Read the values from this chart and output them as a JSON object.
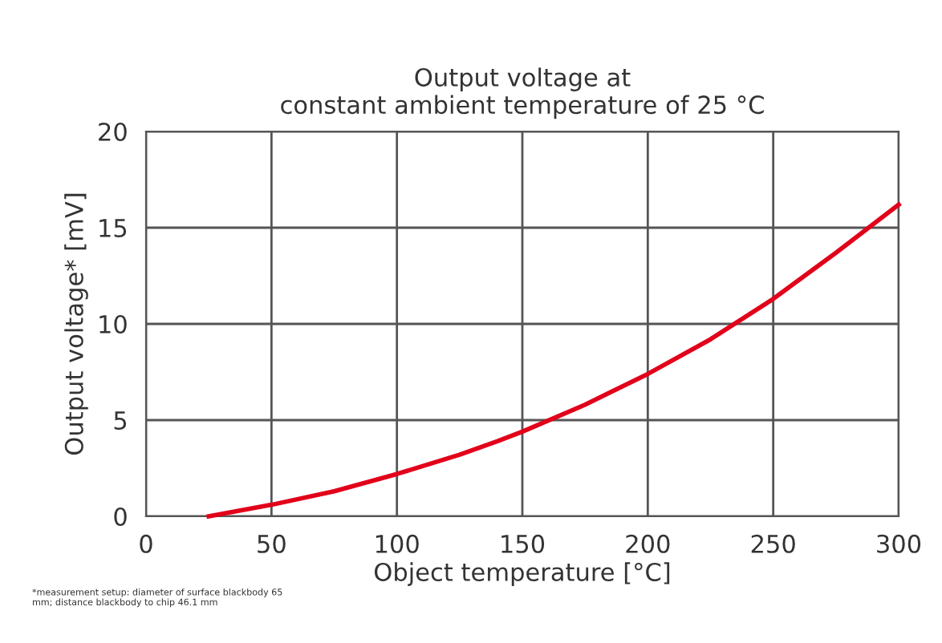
{
  "chart_data": {
    "type": "line",
    "title": "Output voltage at\nconstant ambient temperature of 25 °C",
    "xlabel": "Object temperature [°C]",
    "ylabel": "Output voltage* [mV]",
    "annotations": [
      "*measurement setup: diameter of surface blackbody 65\nmm; distance blackbody to chip 46.1 mm"
    ],
    "series": [
      {
        "color": "#e2001a",
        "x": [
          25,
          50,
          75,
          100,
          125,
          140,
          150,
          175,
          200,
          225,
          250,
          275,
          300
        ],
        "values": [
          0,
          0.6,
          1.3,
          2.2,
          3.2,
          3.9,
          4.4,
          5.8,
          7.4,
          9.2,
          11.3,
          13.7,
          16.2
        ]
      }
    ],
    "xlim": [
      0,
      300
    ],
    "xticks": [
      0,
      50,
      100,
      150,
      200,
      250,
      300
    ],
    "ylim": [
      0,
      20
    ],
    "yticks": [
      0,
      5,
      10,
      15,
      20
    ],
    "grid": true,
    "marker": "none",
    "line_style": "solid"
  }
}
